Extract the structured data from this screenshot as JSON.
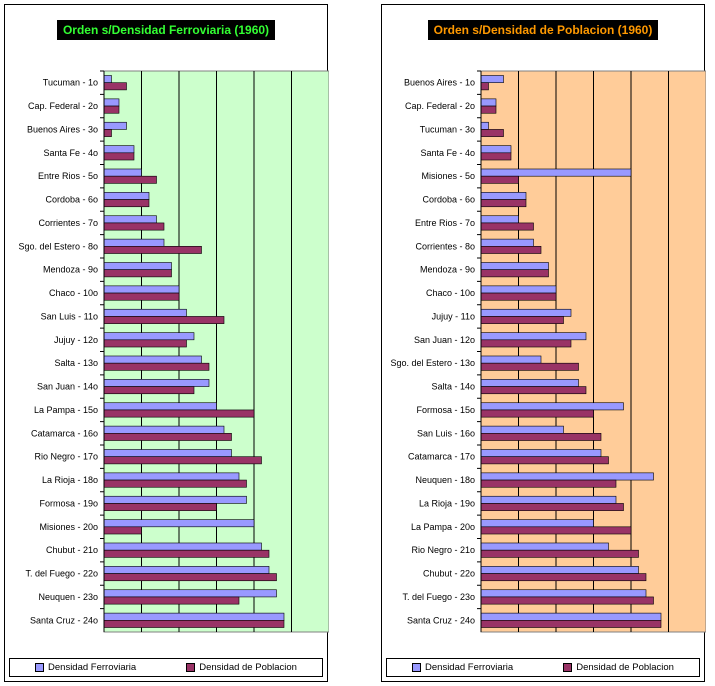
{
  "colors": {
    "ferroviaria": "#9999ff",
    "poblacion": "#993366",
    "bg_left": "#ccffcc",
    "bg_right": "#ffcc99"
  },
  "legend": {
    "ferroviaria": "Densidad Ferroviaria",
    "poblacion": "Densidad de Poblacion"
  },
  "chart_data": [
    {
      "type": "bar",
      "orientation": "horizontal",
      "title": "Orden s/Densidad Ferroviaria (1960)",
      "xlim": [
        0,
        30
      ],
      "grid": true,
      "categories": [
        "Tucuman - 1o",
        "Cap. Federal - 2o",
        "Buenos Aires - 3o",
        "Santa Fe - 4o",
        "Entre Rios - 5o",
        "Cordoba - 6o",
        "Corrientes - 7o",
        "Sgo. del Estero - 8o",
        "Mendoza - 9o",
        "Chaco - 10o",
        "San Luis - 11o",
        "Jujuy - 12o",
        "Salta - 13o",
        "San Juan - 14o",
        "La Pampa - 15o",
        "Catamarca - 16o",
        "Rio Negro - 17o",
        "La Rioja - 18o",
        "Formosa - 19o",
        "Misiones - 20o",
        "Chubut - 21o",
        "T. del Fuego - 22o",
        "Neuquen - 23o",
        "Santa Cruz - 24o"
      ],
      "series": [
        {
          "name": "Densidad Ferroviaria",
          "values": [
            1,
            2,
            3,
            4,
            5,
            6,
            7,
            8,
            9,
            10,
            11,
            12,
            13,
            14,
            15,
            16,
            17,
            18,
            19,
            20,
            21,
            22,
            23,
            24
          ]
        },
        {
          "name": "Densidad de Poblacion",
          "values": [
            3,
            2,
            1,
            4,
            7,
            6,
            8,
            13,
            9,
            10,
            16,
            11,
            14,
            12,
            20,
            17,
            21,
            19,
            15,
            5,
            22,
            23,
            18,
            24
          ]
        }
      ]
    },
    {
      "type": "bar",
      "orientation": "horizontal",
      "title": "Orden s/Densidad de Poblacion (1960)",
      "xlim": [
        0,
        30
      ],
      "grid": true,
      "categories": [
        "Buenos Aires - 1o",
        "Cap. Federal - 2o",
        "Tucuman - 3o",
        "Santa Fe - 4o",
        "Misiones - 5o",
        "Cordoba - 6o",
        "Entre Rios - 7o",
        "Corrientes - 8o",
        "Mendoza - 9o",
        "Chaco - 10o",
        "Jujuy - 11o",
        "San Juan - 12o",
        "Sgo. del Estero - 13o",
        "Salta - 14o",
        "Formosa - 15o",
        "San Luis - 16o",
        "Catamarca - 17o",
        "Neuquen - 18o",
        "La Rioja - 19o",
        "La Pampa - 20o",
        "Rio Negro - 21o",
        "Chubut - 22o",
        "T. del Fuego - 23o",
        "Santa Cruz - 24o"
      ],
      "series": [
        {
          "name": "Densidad Ferroviaria",
          "values": [
            3,
            2,
            1,
            4,
            20,
            6,
            5,
            7,
            9,
            10,
            12,
            14,
            8,
            13,
            19,
            11,
            16,
            23,
            18,
            15,
            17,
            21,
            22,
            24
          ]
        },
        {
          "name": "Densidad de Poblacion",
          "values": [
            1,
            2,
            3,
            4,
            5,
            6,
            7,
            8,
            9,
            10,
            11,
            12,
            13,
            14,
            15,
            16,
            17,
            18,
            19,
            20,
            21,
            22,
            23,
            24
          ]
        }
      ]
    }
  ]
}
